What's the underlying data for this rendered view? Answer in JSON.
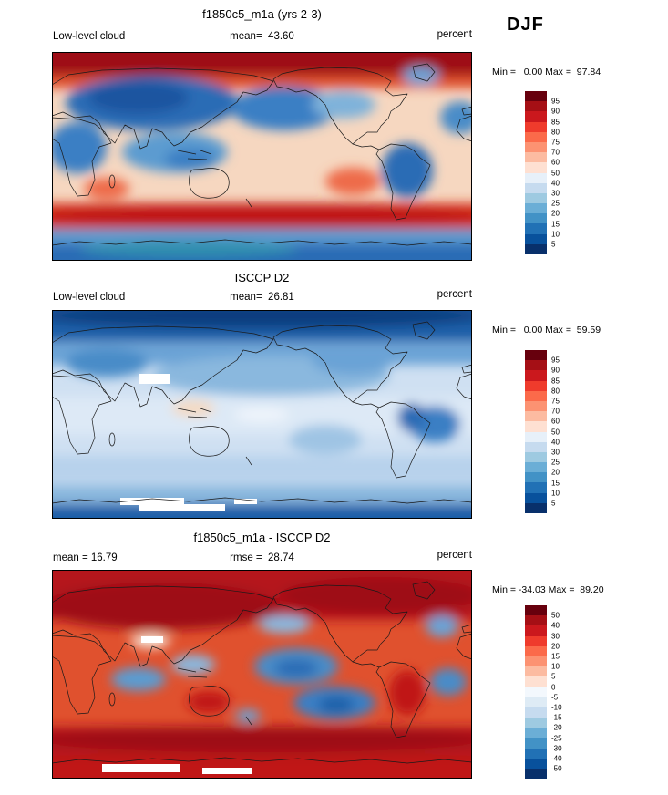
{
  "header": {
    "season": "DJF"
  },
  "panels": [
    {
      "title": "f1850c5_m1a (yrs 2-3)",
      "left_label": "Low-level cloud",
      "center_label": "mean=  43.60",
      "unit_label": "percent",
      "stats": "Min =   0.00 Max =  97.84",
      "colorbar": {
        "labels": [
          "95",
          "90",
          "85",
          "80",
          "75",
          "70",
          "60",
          "50",
          "40",
          "30",
          "25",
          "20",
          "15",
          "10",
          "5"
        ],
        "colors": [
          "#67000d",
          "#a50f15",
          "#cb181d",
          "#ef3b2c",
          "#fb6a4a",
          "#fc9272",
          "#fcbba1",
          "#fee0d2",
          "#e7f0f9",
          "#c6dbef",
          "#9ecae1",
          "#6baed6",
          "#4292c6",
          "#2171b5",
          "#08519c",
          "#08306b"
        ]
      }
    },
    {
      "title": "ISCCP D2",
      "left_label": "Low-level cloud",
      "center_label": "mean=  26.81",
      "unit_label": "percent",
      "stats": "Min =   0.00 Max =  59.59",
      "colorbar": {
        "labels": [
          "95",
          "90",
          "85",
          "80",
          "75",
          "70",
          "60",
          "50",
          "40",
          "30",
          "25",
          "20",
          "15",
          "10",
          "5"
        ],
        "colors": [
          "#67000d",
          "#a50f15",
          "#cb181d",
          "#ef3b2c",
          "#fb6a4a",
          "#fc9272",
          "#fcbba1",
          "#fee0d2",
          "#e7f0f9",
          "#c6dbef",
          "#9ecae1",
          "#6baed6",
          "#4292c6",
          "#2171b5",
          "#08519c",
          "#08306b"
        ]
      }
    },
    {
      "title": "f1850c5_m1a - ISCCP D2",
      "left_label": "mean = 16.79",
      "center_label": "rmse =  28.74",
      "unit_label": "percent",
      "stats": "Min = -34.03 Max =  89.20",
      "colorbar": {
        "labels": [
          "50",
          "40",
          "30",
          "20",
          "15",
          "10",
          "5",
          "0",
          "-5",
          "-10",
          "-15",
          "-20",
          "-25",
          "-30",
          "-40",
          "-50"
        ],
        "colors": [
          "#67000d",
          "#a50f15",
          "#cb181d",
          "#ef3b2c",
          "#fb6a4a",
          "#fc9272",
          "#fcbba1",
          "#fee0d2",
          "#f3f8fd",
          "#deebf5",
          "#c6dbef",
          "#9ecae1",
          "#6baed6",
          "#4292c6",
          "#2171b5",
          "#08519c",
          "#08306b"
        ]
      }
    }
  ],
  "chart_data": [
    {
      "type": "heatmap",
      "title": "f1850c5_m1a (yrs 2-3)",
      "variable": "Low-level cloud",
      "units": "percent",
      "season": "DJF",
      "mean": 43.6,
      "min": 0.0,
      "max": 97.84,
      "contour_levels": [
        5,
        10,
        15,
        20,
        25,
        30,
        40,
        50,
        60,
        70,
        75,
        80,
        85,
        90,
        95
      ],
      "palette": "blue-to-red diverging",
      "projection": "global cylindrical lat-lon map"
    },
    {
      "type": "heatmap",
      "title": "ISCCP D2",
      "variable": "Low-level cloud",
      "units": "percent",
      "season": "DJF",
      "mean": 26.81,
      "min": 0.0,
      "max": 59.59,
      "contour_levels": [
        5,
        10,
        15,
        20,
        25,
        30,
        40,
        50,
        60,
        70,
        75,
        80,
        85,
        90,
        95
      ],
      "palette": "blue-to-red diverging",
      "projection": "global cylindrical lat-lon map"
    },
    {
      "type": "heatmap",
      "title": "f1850c5_m1a - ISCCP D2",
      "units": "percent",
      "season": "DJF",
      "mean": 16.79,
      "rmse": 28.74,
      "min": -34.03,
      "max": 89.2,
      "contour_levels": [
        -50,
        -40,
        -30,
        -25,
        -20,
        -15,
        -10,
        -5,
        0,
        5,
        10,
        15,
        20,
        30,
        40,
        50
      ],
      "palette": "blue-to-red diverging",
      "projection": "global cylindrical lat-lon map"
    }
  ]
}
